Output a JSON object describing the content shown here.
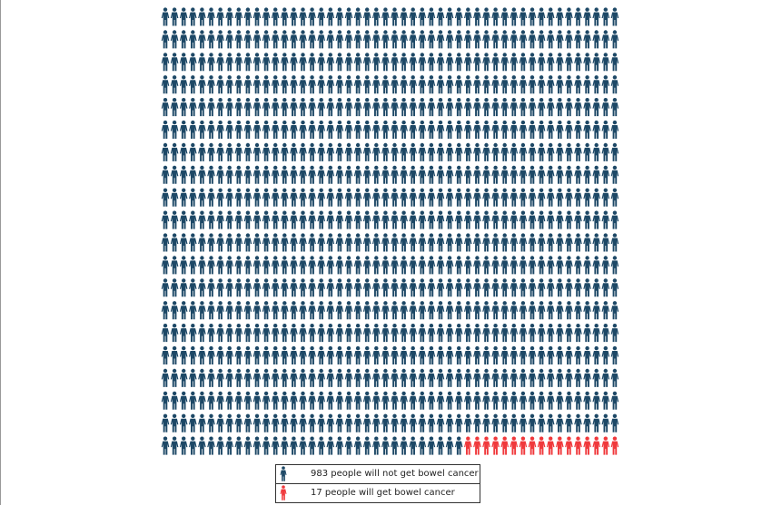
{
  "chart_data": {
    "type": "icon-array",
    "total": 1000,
    "columns": 50,
    "rows": 20,
    "series": [
      {
        "name": "not affected",
        "value": 983,
        "color": "#1d4866",
        "label": "983 people will not get bowel cancer"
      },
      {
        "name": "affected",
        "value": 17,
        "color": "#f0393c",
        "label": "17 people will get bowel cancer"
      }
    ],
    "legend_position": "bottom-center"
  }
}
